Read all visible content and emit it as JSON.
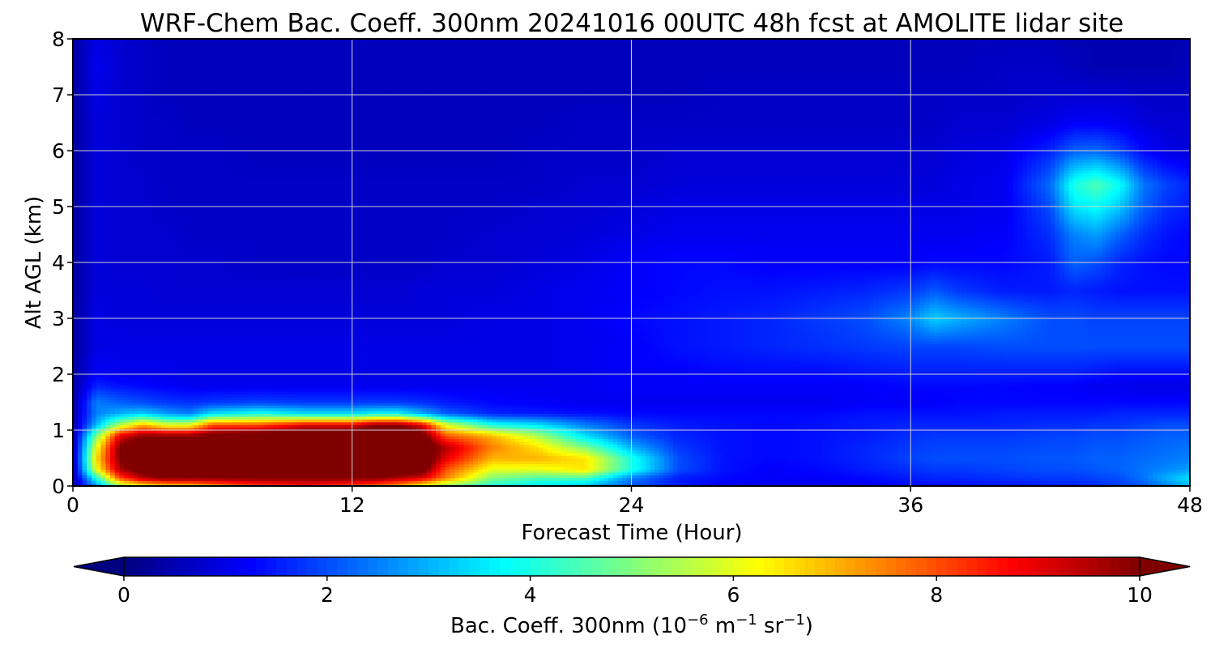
{
  "chart_data": {
    "type": "heatmap",
    "title": "WRF-Chem Bac. Coeff. 300nm  20241016 00UTC 48h fcst at AMOLITE lidar site",
    "xlabel": "Forecast Time (Hour)",
    "ylabel": "Alt AGL (km)",
    "xlim": [
      0,
      48
    ],
    "ylim": [
      0,
      8
    ],
    "xticks": [
      0,
      12,
      24,
      36,
      48
    ],
    "yticks": [
      0,
      1,
      2,
      3,
      4,
      5,
      6,
      7,
      8
    ],
    "grid": true,
    "colorscale": "jet",
    "colorbar": {
      "label_main": "Bac. Coeff. 300nm  (10",
      "label_exp1": "−6",
      "label_m": " m",
      "label_exp2": "−1",
      "label_sr": " sr",
      "label_exp3": "−1",
      "label_close": ")",
      "range": [
        0,
        10
      ],
      "ticks": [
        0,
        2,
        4,
        6,
        8,
        10
      ],
      "extend": "both"
    },
    "x": [
      0,
      1,
      2,
      3,
      4,
      5,
      6,
      8,
      10,
      12,
      13,
      14,
      15,
      16,
      18,
      20,
      22,
      24,
      26,
      28,
      30,
      32,
      34,
      36,
      37,
      38,
      40,
      42,
      43,
      44,
      45,
      46,
      47,
      48
    ],
    "y": [
      0,
      0.15,
      0.3,
      0.5,
      0.7,
      0.9,
      1.1,
      1.3,
      1.5,
      1.8,
      2.0,
      2.5,
      3.0,
      3.5,
      4.0,
      4.5,
      5.0,
      5.4,
      6.0,
      6.5,
      7.0,
      7.5,
      8.0
    ],
    "z": [
      [
        0.5,
        2.5,
        5,
        6,
        6.5,
        6.5,
        7,
        8,
        8.5,
        8,
        7.5,
        7,
        6,
        5,
        4,
        3.5,
        3,
        2,
        1.5,
        1.2,
        1.1,
        1.1,
        1.2,
        1.3,
        1.3,
        1.3,
        1.4,
        1.5,
        1.5,
        1.6,
        1.8,
        2,
        2.5,
        3
      ],
      [
        0.3,
        4,
        8,
        9.5,
        10,
        10,
        10,
        10,
        10,
        10,
        10,
        9.5,
        9,
        7.5,
        5,
        4.5,
        4.5,
        2.5,
        1.5,
        1.3,
        1.2,
        1.2,
        1.3,
        1.5,
        1.6,
        1.6,
        1.7,
        1.8,
        1.8,
        1.9,
        2,
        2.4,
        3,
        3.5
      ],
      [
        0.3,
        6,
        9.5,
        10.5,
        11,
        11,
        11,
        11,
        11,
        11,
        11,
        11,
        10.5,
        8,
        6,
        6,
        6.5,
        4,
        2,
        1.4,
        1.2,
        1.3,
        1.5,
        1.7,
        1.8,
        1.8,
        1.9,
        2,
        2,
        2.1,
        2.2,
        2.4,
        2.6,
        2.8
      ],
      [
        0.3,
        6.5,
        10,
        11,
        11,
        11,
        11,
        11,
        11,
        11,
        11,
        11,
        11,
        9,
        7,
        7,
        6.5,
        4,
        2,
        1.4,
        1.3,
        1.4,
        1.6,
        1.9,
        2,
        2,
        2,
        2.1,
        2.1,
        2.2,
        2.2,
        2.3,
        2.4,
        2.5
      ],
      [
        0.3,
        6,
        10,
        11,
        11,
        11,
        11,
        11,
        11,
        11,
        11,
        11,
        11,
        9.5,
        7.5,
        6.5,
        5,
        3,
        1.8,
        1.4,
        1.3,
        1.4,
        1.6,
        1.8,
        1.9,
        1.9,
        1.9,
        2,
        2,
        2.1,
        2.1,
        2.2,
        2.3,
        2.4
      ],
      [
        0.3,
        5,
        9,
        10,
        10,
        10,
        10.5,
        11,
        11,
        11,
        11,
        11,
        10.5,
        8,
        7,
        5.5,
        3.5,
        2.2,
        1.6,
        1.4,
        1.3,
        1.4,
        1.5,
        1.7,
        1.8,
        1.8,
        1.8,
        1.9,
        1.9,
        2,
        2,
        2.1,
        2.2,
        2.2
      ],
      [
        0.3,
        3,
        5.5,
        7,
        6,
        6,
        8,
        8,
        9,
        9,
        10,
        10,
        9,
        6,
        4,
        3.5,
        2.5,
        1.8,
        1.5,
        1.4,
        1.3,
        1.4,
        1.5,
        1.6,
        1.6,
        1.6,
        1.6,
        1.7,
        1.7,
        1.8,
        1.8,
        1.9,
        2,
        2
      ],
      [
        0.3,
        2.5,
        3,
        3.3,
        2.8,
        2.5,
        3.5,
        4,
        3.5,
        3.5,
        3.8,
        3.8,
        3,
        2.2,
        1.6,
        1.5,
        1.4,
        1.3,
        1.3,
        1.3,
        1.3,
        1.3,
        1.4,
        1.4,
        1.4,
        1.4,
        1.5,
        1.5,
        1.5,
        1.5,
        1.6,
        1.6,
        1.6,
        1.6
      ],
      [
        0.3,
        2.5,
        2.2,
        2,
        1.8,
        1.7,
        1.8,
        1.9,
        1.8,
        1.8,
        1.8,
        1.8,
        1.7,
        1.5,
        1.3,
        1.2,
        1.1,
        1.1,
        1.1,
        1.1,
        1.1,
        1.1,
        1.2,
        1.2,
        1.2,
        1.3,
        1.3,
        1.3,
        1.3,
        1.3,
        1.3,
        1.3,
        1.3,
        1.3
      ],
      [
        0.3,
        1.6,
        1.4,
        1.3,
        1.2,
        1.1,
        1.1,
        1.1,
        1.1,
        1.1,
        1.1,
        1.1,
        1.1,
        1.1,
        1.1,
        1.1,
        1.1,
        1.2,
        1.2,
        1.2,
        1.2,
        1.2,
        1.2,
        1.3,
        1.3,
        1.3,
        1.3,
        1.2,
        1.2,
        1.1,
        1.1,
        1,
        1,
        1
      ],
      [
        0.3,
        1.2,
        1.1,
        1.1,
        1.1,
        1,
        1,
        1,
        1,
        1,
        1,
        1,
        1,
        1,
        1,
        1,
        1.1,
        1.2,
        1.2,
        1.3,
        1.3,
        1.3,
        1.4,
        1.5,
        1.5,
        1.5,
        1.5,
        1.5,
        1.5,
        1.4,
        1.3,
        1.3,
        1.3,
        1.3
      ],
      [
        0.3,
        1,
        1,
        1,
        1,
        1,
        1,
        1,
        1,
        1,
        1,
        1,
        1,
        1,
        1,
        1,
        1.1,
        1.2,
        1.4,
        1.5,
        1.6,
        1.7,
        1.8,
        1.9,
        1.9,
        1.9,
        2,
        2,
        2,
        2,
        2,
        2,
        2,
        2
      ],
      [
        0.3,
        1,
        0.9,
        0.9,
        0.9,
        0.9,
        0.9,
        0.9,
        0.9,
        0.9,
        0.9,
        0.9,
        0.9,
        0.9,
        1,
        1,
        1.1,
        1.3,
        1.4,
        1.5,
        1.6,
        1.8,
        2,
        2.6,
        3.3,
        3,
        2.5,
        2,
        2,
        1.9,
        1.9,
        1.9,
        1.9,
        1.9
      ],
      [
        0.3,
        0.9,
        0.9,
        0.9,
        0.8,
        0.8,
        0.8,
        0.8,
        0.8,
        0.8,
        0.8,
        0.8,
        0.9,
        0.9,
        0.9,
        1,
        1.1,
        1.2,
        1.3,
        1.4,
        1.4,
        1.5,
        1.6,
        1.8,
        2.1,
        1.8,
        1.5,
        1.5,
        1.6,
        1.5,
        1.4,
        1.4,
        1.4,
        1.4
      ],
      [
        0.3,
        0.9,
        0.8,
        0.8,
        0.8,
        0.8,
        0.8,
        0.7,
        0.7,
        0.7,
        0.7,
        0.7,
        0.7,
        0.8,
        0.8,
        0.9,
        1,
        1.2,
        1.3,
        1.3,
        1.2,
        1.2,
        1.2,
        1.2,
        1.3,
        1.3,
        1.3,
        1.5,
        2.2,
        2,
        1.6,
        1.4,
        1.3,
        1.3
      ],
      [
        0.3,
        0.9,
        0.8,
        0.8,
        0.8,
        0.7,
        0.7,
        0.7,
        0.7,
        0.7,
        0.7,
        0.7,
        0.7,
        0.7,
        0.8,
        0.8,
        0.9,
        1,
        1.1,
        1.1,
        1.1,
        1.1,
        1.1,
        1.1,
        1.1,
        1.1,
        1.2,
        1.7,
        2.5,
        2.8,
        2.2,
        1.7,
        1.4,
        1.3
      ],
      [
        0.3,
        0.9,
        0.8,
        0.8,
        0.7,
        0.7,
        0.7,
        0.7,
        0.7,
        0.7,
        0.7,
        0.7,
        0.7,
        0.7,
        0.7,
        0.8,
        0.8,
        0.9,
        1,
        1,
        1,
        1,
        1,
        1,
        1,
        1,
        1.1,
        2,
        3.5,
        3.8,
        3.2,
        2.2,
        1.7,
        1.5
      ],
      [
        0.3,
        0.9,
        0.8,
        0.8,
        0.7,
        0.7,
        0.7,
        0.7,
        0.7,
        0.7,
        0.7,
        0.7,
        0.7,
        0.7,
        0.7,
        0.7,
        0.8,
        0.8,
        0.9,
        0.9,
        0.9,
        0.9,
        0.9,
        0.9,
        0.9,
        1,
        1.1,
        2.3,
        4,
        4.5,
        3.8,
        2.4,
        1.9,
        1.6
      ],
      [
        0.3,
        0.9,
        0.8,
        0.7,
        0.7,
        0.7,
        0.7,
        0.6,
        0.6,
        0.6,
        0.6,
        0.6,
        0.6,
        0.6,
        0.6,
        0.7,
        0.7,
        0.7,
        0.8,
        0.8,
        0.8,
        0.8,
        0.8,
        0.8,
        0.8,
        0.9,
        1,
        1.6,
        2.2,
        2.3,
        1.9,
        1.3,
        1,
        0.9
      ],
      [
        0.3,
        0.9,
        0.8,
        0.7,
        0.7,
        0.6,
        0.6,
        0.6,
        0.6,
        0.6,
        0.6,
        0.6,
        0.6,
        0.6,
        0.6,
        0.6,
        0.7,
        0.7,
        0.7,
        0.7,
        0.7,
        0.7,
        0.7,
        0.7,
        0.7,
        0.8,
        0.8,
        1,
        1.2,
        1.2,
        1.1,
        0.9,
        0.8,
        0.8
      ],
      [
        0.3,
        1,
        0.8,
        0.7,
        0.6,
        0.6,
        0.6,
        0.6,
        0.6,
        0.6,
        0.6,
        0.6,
        0.6,
        0.6,
        0.6,
        0.6,
        0.6,
        0.6,
        0.6,
        0.7,
        0.7,
        0.7,
        0.7,
        0.7,
        0.7,
        0.7,
        0.7,
        0.8,
        0.8,
        0.8,
        0.8,
        0.7,
        0.7,
        0.7
      ],
      [
        0.3,
        1.1,
        0.8,
        0.7,
        0.6,
        0.6,
        0.6,
        0.6,
        0.6,
        0.6,
        0.6,
        0.6,
        0.6,
        0.6,
        0.6,
        0.6,
        0.6,
        0.6,
        0.6,
        0.6,
        0.6,
        0.6,
        0.6,
        0.6,
        0.6,
        0.6,
        0.7,
        0.7,
        0.6,
        0.5,
        0.5,
        0.5,
        0.5,
        0.6
      ],
      [
        0.3,
        1,
        0.8,
        0.7,
        0.6,
        0.6,
        0.6,
        0.6,
        0.6,
        0.6,
        0.6,
        0.6,
        0.6,
        0.6,
        0.6,
        0.6,
        0.6,
        0.6,
        0.6,
        0.6,
        0.6,
        0.6,
        0.6,
        0.6,
        0.6,
        0.6,
        0.6,
        0.6,
        0.5,
        0.5,
        0.5,
        0.5,
        0.5,
        0.5
      ]
    ]
  }
}
